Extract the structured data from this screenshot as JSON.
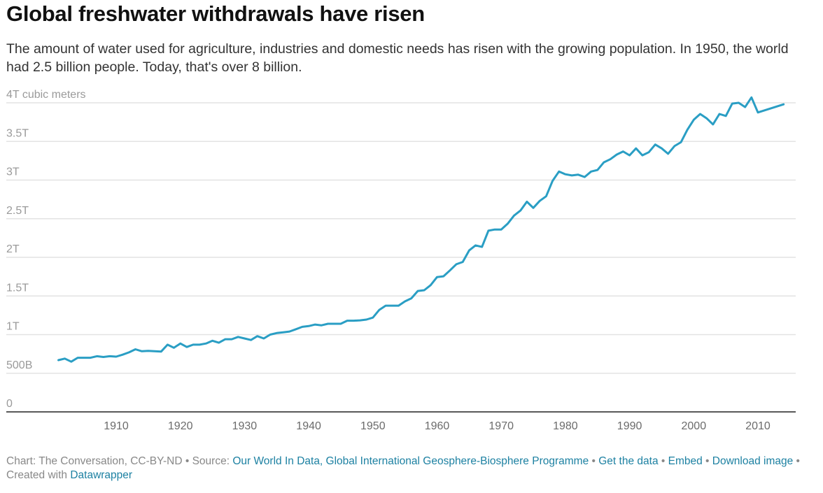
{
  "header": {
    "title": "Global freshwater withdrawals have risen",
    "subtitle": "The amount of water used for agriculture, industries and domestic needs has risen with the growing population. In 1950, the world had 2.5 billion people. Today, that's over 8 billion."
  },
  "chart_data": {
    "type": "line",
    "title": "Global freshwater withdrawals have risen",
    "xlabel": "",
    "ylabel": "cubic meters",
    "y_unit_label": "4T cubic meters",
    "ylim": [
      0,
      4000000000000
    ],
    "xlim": [
      1900,
      2015
    ],
    "grid": true,
    "line_color": "#2a9ec4",
    "y_ticks": [
      {
        "value": 0,
        "label": "0"
      },
      {
        "value": 500000000000,
        "label": "500B"
      },
      {
        "value": 1000000000000,
        "label": "1T"
      },
      {
        "value": 1500000000000,
        "label": "1.5T"
      },
      {
        "value": 2000000000000,
        "label": "2T"
      },
      {
        "value": 2500000000000,
        "label": "2.5T"
      },
      {
        "value": 3000000000000,
        "label": "3T"
      },
      {
        "value": 3500000000000,
        "label": "3.5T"
      },
      {
        "value": 4000000000000,
        "label": "4T cubic meters"
      }
    ],
    "x_ticks": [
      1910,
      1920,
      1930,
      1940,
      1950,
      1960,
      1970,
      1980,
      1990,
      2000,
      2010
    ],
    "series": [
      {
        "name": "Global freshwater withdrawals",
        "unit": "trillion cubic meters",
        "x": [
          1901,
          1902,
          1903,
          1904,
          1905,
          1906,
          1907,
          1908,
          1909,
          1910,
          1911,
          1912,
          1913,
          1914,
          1915,
          1916,
          1917,
          1918,
          1919,
          1920,
          1921,
          1922,
          1923,
          1924,
          1925,
          1926,
          1927,
          1928,
          1929,
          1930,
          1931,
          1932,
          1933,
          1934,
          1935,
          1936,
          1937,
          1938,
          1939,
          1940,
          1941,
          1942,
          1943,
          1944,
          1945,
          1946,
          1947,
          1948,
          1949,
          1950,
          1951,
          1952,
          1953,
          1954,
          1955,
          1956,
          1957,
          1958,
          1959,
          1960,
          1961,
          1962,
          1963,
          1964,
          1965,
          1966,
          1967,
          1968,
          1969,
          1970,
          1971,
          1972,
          1973,
          1974,
          1975,
          1976,
          1977,
          1978,
          1979,
          1980,
          1981,
          1982,
          1983,
          1984,
          1985,
          1986,
          1987,
          1988,
          1989,
          1990,
          1991,
          1992,
          1993,
          1994,
          1995,
          1996,
          1997,
          1998,
          1999,
          2000,
          2001,
          2002,
          2003,
          2004,
          2005,
          2006,
          2007,
          2008,
          2009,
          2010,
          2014
        ],
        "values": [
          0.67,
          0.69,
          0.65,
          0.7,
          0.7,
          0.7,
          0.72,
          0.71,
          0.72,
          0.715,
          0.74,
          0.77,
          0.81,
          0.785,
          0.79,
          0.785,
          0.78,
          0.87,
          0.83,
          0.885,
          0.84,
          0.87,
          0.87,
          0.885,
          0.92,
          0.895,
          0.94,
          0.94,
          0.97,
          0.95,
          0.93,
          0.98,
          0.95,
          1.0,
          1.02,
          1.03,
          1.04,
          1.07,
          1.1,
          1.11,
          1.13,
          1.12,
          1.14,
          1.14,
          1.14,
          1.18,
          1.18,
          1.185,
          1.195,
          1.22,
          1.32,
          1.375,
          1.375,
          1.375,
          1.43,
          1.47,
          1.565,
          1.575,
          1.64,
          1.745,
          1.755,
          1.83,
          1.91,
          1.94,
          2.09,
          2.155,
          2.135,
          2.345,
          2.36,
          2.36,
          2.435,
          2.54,
          2.605,
          2.72,
          2.64,
          2.73,
          2.79,
          2.99,
          3.11,
          3.075,
          3.06,
          3.07,
          3.04,
          3.11,
          3.13,
          3.23,
          3.27,
          3.33,
          3.37,
          3.32,
          3.41,
          3.32,
          3.36,
          3.46,
          3.41,
          3.34,
          3.44,
          3.49,
          3.65,
          3.78,
          3.855,
          3.8,
          3.72,
          3.855,
          3.83,
          3.99,
          4.0,
          3.945,
          4.07,
          3.875,
          3.98
        ]
      }
    ]
  },
  "footer": {
    "chart_credit": "Chart: The Conversation, CC-BY-ND",
    "sep1": " • Source: ",
    "source_link": "Our World In Data, Global International Geosphere-Biosphere Programme",
    "sep2": " • ",
    "get_data_link": "Get the data",
    "sep3": " • ",
    "embed_link": "Embed",
    "sep4": " • ",
    "download_link": "Download image",
    "sep5": " • Created with ",
    "datawrapper_link": "Datawrapper"
  }
}
